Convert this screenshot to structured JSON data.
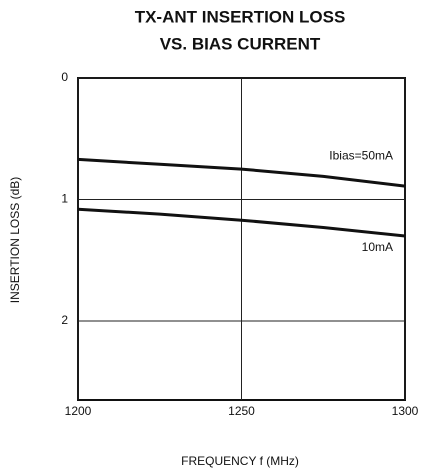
{
  "chart_data": {
    "type": "line",
    "title": [
      "TX-ANT INSERTION LOSS",
      "VS. BIAS CURRENT"
    ],
    "x_label": "FREQUENCY f (MHz)",
    "y_label": "INSERTION LOSS (dB)",
    "x": [
      1200,
      1225,
      1250,
      1275,
      1300
    ],
    "series": [
      {
        "name": "Ibias=50mA",
        "color": "#111111",
        "values": [
          0.67,
          0.71,
          0.75,
          0.81,
          0.89
        ]
      },
      {
        "name": "10mA",
        "color": "#111111",
        "values": [
          1.08,
          1.12,
          1.17,
          1.23,
          1.3
        ]
      }
    ],
    "xlim": [
      1200,
      1300
    ],
    "xticks": [
      1200,
      1250,
      1300
    ],
    "ylim": [
      0,
      2.65
    ],
    "yticks": [
      0,
      1,
      2
    ],
    "y_inverted": true,
    "grid": true
  }
}
